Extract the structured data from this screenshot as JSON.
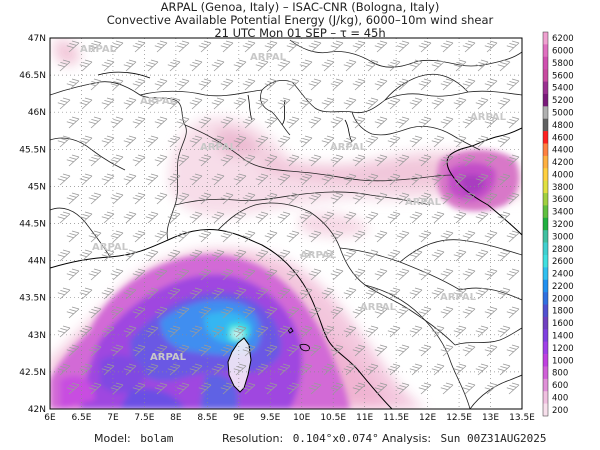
{
  "header": {
    "line1": "ARPAL (Genoa, Italy)  –  ISAC-CNR (Bologna, Italy)",
    "line2": "Convective Available Potential Energy (J/kg), 6000–10m wind shear",
    "line3": "21 UTC Mon 01 SEP  –  τ = 45h"
  },
  "map": {
    "lat_labels": [
      "47N",
      "46.5N",
      "46N",
      "45.5N",
      "45N",
      "44.5N",
      "44N",
      "43.5N",
      "43N",
      "42.5N",
      "42N"
    ],
    "lon_labels": [
      "6E",
      "6.5E",
      "7E",
      "7.5E",
      "8E",
      "8.5E",
      "9E",
      "9.5E",
      "10E",
      "10.5E",
      "11E",
      "11.5E",
      "12E",
      "12.5E",
      "13E",
      "13.5E"
    ],
    "watermark": "ARPAL"
  },
  "colorbar": {
    "labels": [
      "6200",
      "6000",
      "5800",
      "5600",
      "5400",
      "5200",
      "5000",
      "4800",
      "4600",
      "4400",
      "4200",
      "4000",
      "3800",
      "3600",
      "3400",
      "3200",
      "3000",
      "2800",
      "2600",
      "2400",
      "2200",
      "2000",
      "1800",
      "1600",
      "1400",
      "1200",
      "1000",
      "800",
      "600",
      "400",
      "200"
    ],
    "colors": [
      "#f0a0d0",
      "#e070c0",
      "#d050b0",
      "#c84aa0",
      "#9a3090",
      "#7a1a7a",
      "#b0b0b0",
      "#606060",
      "#ff2020",
      "#ff8040",
      "#ffb040",
      "#ffd040",
      "#e0e040",
      "#a0d040",
      "#60c040",
      "#20b040",
      "#40c0a0",
      "#40d0d0",
      "#40e0e0",
      "#30c0f0",
      "#2090f0",
      "#3070e0",
      "#5050d0",
      "#7040c0",
      "#8040e0",
      "#a040e8",
      "#c040e0",
      "#d060d8",
      "#e090d8",
      "#f0c0e0",
      "#f8e0ec"
    ]
  },
  "footer": {
    "model_label": "Model:",
    "model_value": "bolam",
    "resolution_label": "Resolution:",
    "resolution_value": "0.104°x0.074°",
    "analysis_label": "Analysis:",
    "analysis_value": "Sun 00Z31AUG2025"
  }
}
